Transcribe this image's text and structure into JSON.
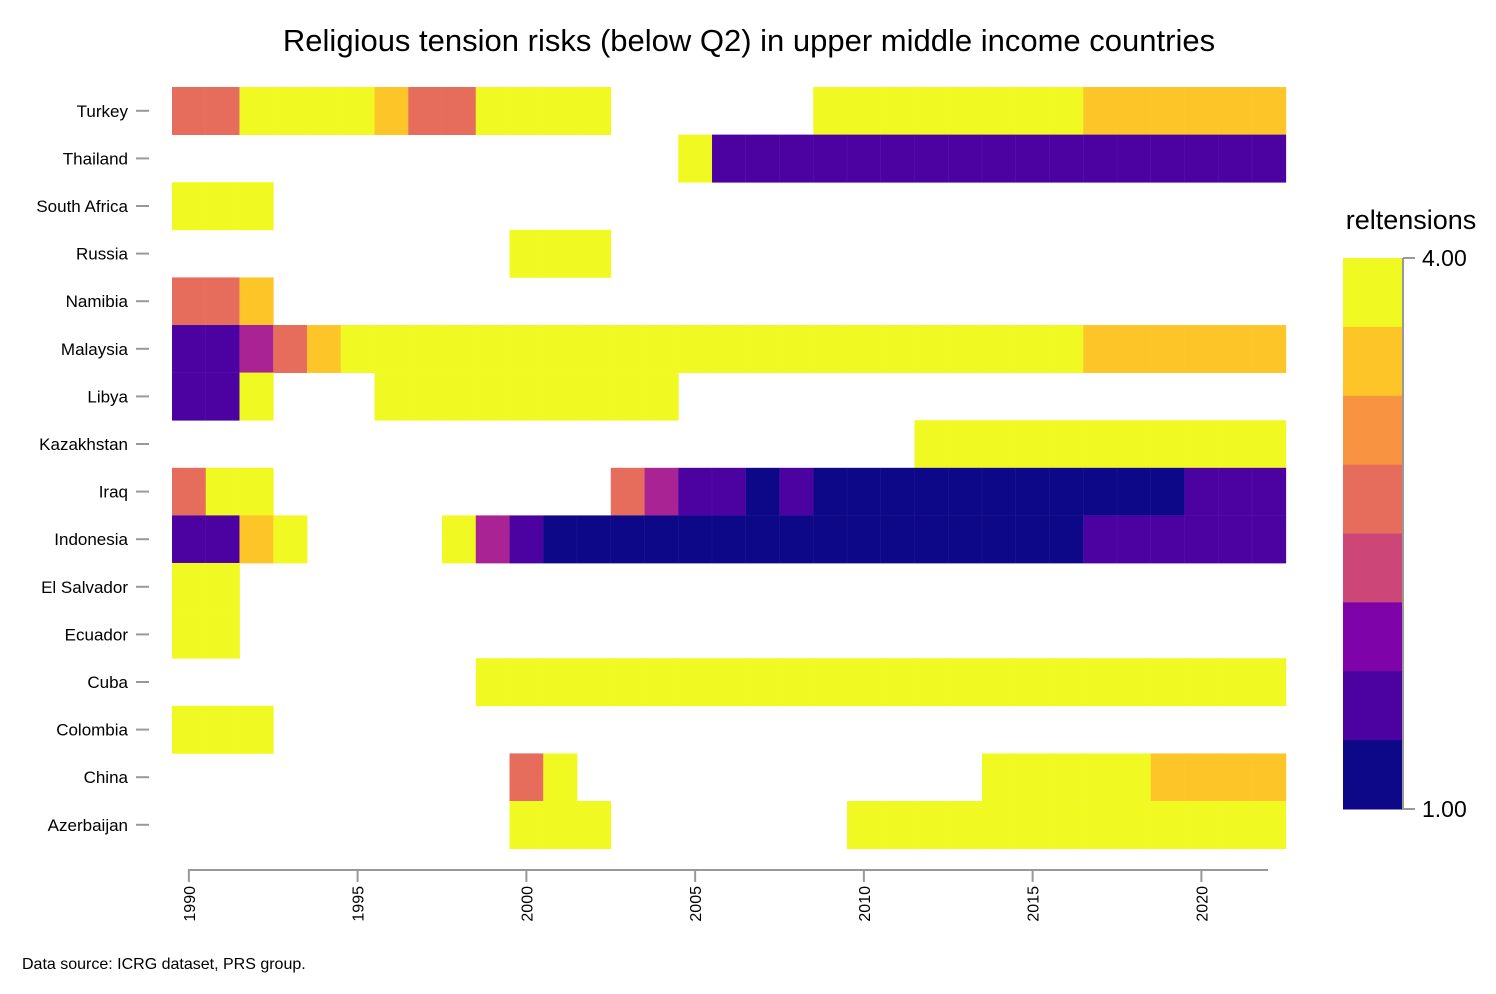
{
  "chart_data": {
    "type": "heatmap",
    "title": "Religious tension risks (below Q2) in upper middle income countries",
    "x_ticks": [
      1990,
      1995,
      2000,
      2005,
      2010,
      2015,
      2020
    ],
    "xlim": [
      1990,
      2022
    ],
    "countries": [
      "Turkey",
      "Thailand",
      "South Africa",
      "Russia",
      "Namibia",
      "Malaysia",
      "Libya",
      "Kazakhstan",
      "Iraq",
      "Indonesia",
      "El Salvador",
      "Ecuador",
      "Cuba",
      "Colombia",
      "China",
      "Azerbaijan"
    ],
    "values": {
      "Turkey": [
        3.0,
        3.0,
        4.0,
        4.0,
        4.0,
        4.0,
        3.5,
        3.0,
        3.0,
        4.0,
        4.0,
        4.0,
        4.0,
        null,
        null,
        null,
        null,
        null,
        null,
        4.0,
        4.0,
        4.0,
        4.0,
        4.0,
        4.0,
        4.0,
        4.0,
        3.5,
        3.5,
        3.5,
        3.5,
        3.5,
        3.5
      ],
      "Thailand": [
        null,
        null,
        null,
        null,
        null,
        null,
        null,
        null,
        null,
        null,
        null,
        null,
        null,
        null,
        null,
        4.0,
        1.5,
        1.5,
        1.5,
        1.5,
        1.5,
        1.5,
        1.5,
        1.5,
        1.5,
        1.5,
        1.5,
        1.5,
        1.5,
        1.5,
        1.5,
        1.5,
        1.5
      ],
      "South Africa": [
        4.0,
        4.0,
        4.0,
        null,
        null,
        null,
        null,
        null,
        null,
        null,
        null,
        null,
        null,
        null,
        null,
        null,
        null,
        null,
        null,
        null,
        null,
        null,
        null,
        null,
        null,
        null,
        null,
        null,
        null,
        null,
        null,
        null,
        null
      ],
      "Russia": [
        null,
        null,
        null,
        null,
        null,
        null,
        null,
        null,
        null,
        null,
        4.0,
        4.0,
        4.0,
        null,
        null,
        null,
        null,
        null,
        null,
        null,
        null,
        null,
        null,
        null,
        null,
        null,
        null,
        null,
        null,
        null,
        null,
        null,
        null
      ],
      "Namibia": [
        3.0,
        3.0,
        3.5,
        null,
        null,
        null,
        null,
        null,
        null,
        null,
        null,
        null,
        null,
        null,
        null,
        null,
        null,
        null,
        null,
        null,
        null,
        null,
        null,
        null,
        null,
        null,
        null,
        null,
        null,
        null,
        null,
        null,
        null
      ],
      "Malaysia": [
        1.5,
        1.5,
        2.0,
        3.0,
        3.5,
        4.0,
        4.0,
        4.0,
        4.0,
        4.0,
        4.0,
        4.0,
        4.0,
        4.0,
        4.0,
        4.0,
        4.0,
        4.0,
        4.0,
        4.0,
        4.0,
        4.0,
        4.0,
        4.0,
        4.0,
        4.0,
        4.0,
        3.5,
        3.5,
        3.5,
        3.5,
        3.5,
        3.5
      ],
      "Libya": [
        1.5,
        1.5,
        4.0,
        null,
        null,
        null,
        4.0,
        4.0,
        4.0,
        4.0,
        4.0,
        4.0,
        4.0,
        4.0,
        4.0,
        null,
        null,
        null,
        null,
        null,
        null,
        null,
        null,
        null,
        null,
        null,
        null,
        null,
        null,
        null,
        null,
        null,
        null
      ],
      "Kazakhstan": [
        null,
        null,
        null,
        null,
        null,
        null,
        null,
        null,
        null,
        null,
        null,
        null,
        null,
        null,
        null,
        null,
        null,
        null,
        null,
        null,
        null,
        null,
        4.0,
        4.0,
        4.0,
        4.0,
        4.0,
        4.0,
        4.0,
        4.0,
        4.0,
        4.0,
        4.0
      ],
      "Iraq": [
        3.0,
        4.0,
        4.0,
        null,
        null,
        null,
        null,
        null,
        null,
        null,
        null,
        null,
        null,
        3.0,
        2.0,
        1.5,
        1.5,
        1.0,
        1.25,
        1.0,
        1.0,
        1.0,
        1.0,
        1.0,
        1.0,
        1.0,
        1.0,
        1.0,
        1.0,
        1.0,
        1.25,
        1.25,
        1.25
      ],
      "Indonesia": [
        1.5,
        1.5,
        3.5,
        4.0,
        null,
        null,
        null,
        null,
        4.0,
        2.0,
        1.25,
        1.0,
        1.0,
        1.0,
        1.0,
        1.0,
        1.0,
        1.0,
        1.0,
        1.0,
        1.0,
        1.0,
        1.0,
        1.0,
        1.0,
        1.0,
        1.0,
        1.25,
        1.25,
        1.25,
        1.25,
        1.25,
        1.25
      ],
      "El Salvador": [
        4.0,
        4.0,
        null,
        null,
        null,
        null,
        null,
        null,
        null,
        null,
        null,
        null,
        null,
        null,
        null,
        null,
        null,
        null,
        null,
        null,
        null,
        null,
        null,
        null,
        null,
        null,
        null,
        null,
        null,
        null,
        null,
        null,
        null
      ],
      "Ecuador": [
        4.0,
        4.0,
        null,
        null,
        null,
        null,
        null,
        null,
        null,
        null,
        null,
        null,
        null,
        null,
        null,
        null,
        null,
        null,
        null,
        null,
        null,
        null,
        null,
        null,
        null,
        null,
        null,
        null,
        null,
        null,
        null,
        null,
        null
      ],
      "Cuba": [
        null,
        null,
        null,
        null,
        null,
        null,
        null,
        null,
        null,
        4.0,
        4.0,
        4.0,
        4.0,
        4.0,
        4.0,
        4.0,
        4.0,
        4.0,
        4.0,
        4.0,
        4.0,
        4.0,
        4.0,
        4.0,
        4.0,
        4.0,
        4.0,
        4.0,
        4.0,
        4.0,
        4.0,
        4.0,
        4.0
      ],
      "Colombia": [
        4.0,
        4.0,
        4.0,
        null,
        null,
        null,
        null,
        null,
        null,
        null,
        null,
        null,
        null,
        null,
        null,
        null,
        null,
        null,
        null,
        null,
        null,
        null,
        null,
        null,
        null,
        null,
        null,
        null,
        null,
        null,
        null,
        null,
        null
      ],
      "China": [
        null,
        null,
        null,
        null,
        null,
        null,
        null,
        null,
        null,
        null,
        3.0,
        4.0,
        null,
        null,
        null,
        null,
        null,
        null,
        null,
        null,
        null,
        null,
        null,
        null,
        4.0,
        4.0,
        4.0,
        4.0,
        4.0,
        3.5,
        3.5,
        3.5,
        3.5
      ],
      "Azerbaijan": [
        null,
        null,
        null,
        null,
        null,
        null,
        null,
        null,
        null,
        null,
        4.0,
        4.0,
        4.0,
        null,
        null,
        null,
        null,
        null,
        null,
        null,
        4.0,
        4.0,
        4.0,
        4.0,
        4.0,
        4.0,
        4.0,
        4.0,
        4.0,
        4.0,
        4.0,
        4.0,
        4.0
      ]
    },
    "legend": {
      "title": "reltensions",
      "max_label": "4.00",
      "min_label": "1.00",
      "range": [
        1.0,
        4.0
      ],
      "colors": [
        "#0d0887",
        "#4c02a1",
        "#7e03a8",
        "#a92395",
        "#cc4778",
        "#e66c5c",
        "#f89441",
        "#fdc527",
        "#f0f921"
      ]
    },
    "source": "Data source: ICRG dataset, PRS group."
  }
}
